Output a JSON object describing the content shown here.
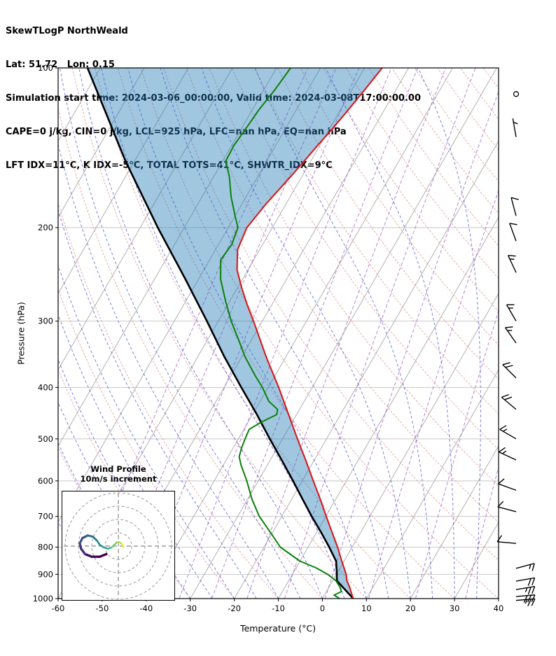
{
  "header": {
    "line1": "SkewTLogP NorthWeald",
    "line2": "Lat: 51.72   Lon: 0.15",
    "line3": "Simulation start time: 2024-03-06_00:00:00, Valid time: 2024-03-08T17:00:00.00",
    "line4": "CAPE=0 j/kg, CIN=0 j/kg, LCL=925 hPa, LFC=nan hPa, EQ=nan hPa",
    "line5": "LFT IDX=11°C, K IDX=-5°C, TOTAL TOTS=41°C, SHWTR_IDX=9°C"
  },
  "axes": {
    "xlabel": "Temperature (°C)",
    "ylabel": "Pressure (hPa)"
  },
  "inset": {
    "title_line1": "Wind Profile",
    "title_line2": "10m/s increment",
    "ring_step_ms": 10
  },
  "chart_data": {
    "type": "line",
    "subtype": "skewt-logp",
    "title": "SkewTLogP NorthWeald",
    "xlabel": "Temperature (°C)",
    "ylabel": "Pressure (hPa)",
    "xlim": [
      -60,
      40
    ],
    "p_top": 100,
    "p_bottom": 1000,
    "skew_deg": 30,
    "x_ticks": [
      -60,
      -50,
      -40,
      -30,
      -20,
      -10,
      0,
      10,
      20,
      30,
      40
    ],
    "pressure_ticks": [
      100,
      200,
      300,
      400,
      500,
      600,
      700,
      800,
      900,
      1000
    ],
    "series": [
      {
        "name": "parcel",
        "color": "#000000",
        "width": 2.6,
        "points": [
          [
            1000,
            7.0
          ],
          [
            925,
            0.9
          ],
          [
            900,
            0.1
          ],
          [
            850,
            -1.8
          ],
          [
            800,
            -5.2
          ],
          [
            750,
            -9.0
          ],
          [
            700,
            -13.2
          ],
          [
            650,
            -17.5
          ],
          [
            600,
            -22.1
          ],
          [
            550,
            -27.2
          ],
          [
            500,
            -32.9
          ],
          [
            450,
            -39.0
          ],
          [
            400,
            -46.1
          ],
          [
            350,
            -54.0
          ],
          [
            300,
            -62.6
          ],
          [
            250,
            -73.0
          ],
          [
            200,
            -86.0
          ],
          [
            150,
            -102.0
          ],
          [
            100,
            -122.9
          ]
        ]
      },
      {
        "name": "temperature",
        "color": "#dd1111",
        "width": 2,
        "points": [
          [
            1000,
            7.0
          ],
          [
            975,
            5.8
          ],
          [
            950,
            4.6
          ],
          [
            925,
            3.2
          ],
          [
            900,
            2.2
          ],
          [
            850,
            -0.5
          ],
          [
            800,
            -3.3
          ],
          [
            750,
            -6.5
          ],
          [
            700,
            -9.9
          ],
          [
            650,
            -13.5
          ],
          [
            600,
            -17.5
          ],
          [
            550,
            -21.8
          ],
          [
            500,
            -26.6
          ],
          [
            450,
            -31.8
          ],
          [
            400,
            -37.6
          ],
          [
            350,
            -44.5
          ],
          [
            300,
            -52.0
          ],
          [
            280,
            -55.5
          ],
          [
            260,
            -59.0
          ],
          [
            240,
            -62.5
          ],
          [
            220,
            -65.0
          ],
          [
            200,
            -65.8
          ],
          [
            180,
            -64.5
          ],
          [
            160,
            -62.5
          ],
          [
            150,
            -61.5
          ],
          [
            140,
            -60.5
          ],
          [
            130,
            -59.3
          ],
          [
            120,
            -58.2
          ],
          [
            110,
            -57.1
          ],
          [
            100,
            -56.0
          ]
        ]
      },
      {
        "name": "dewpoint",
        "color": "#0b810b",
        "width": 2,
        "points": [
          [
            1000,
            3.9
          ],
          [
            985,
            2.2
          ],
          [
            970,
            3.4
          ],
          [
            950,
            2.4
          ],
          [
            925,
            0.7
          ],
          [
            900,
            -2.0
          ],
          [
            875,
            -5.5
          ],
          [
            850,
            -10.0
          ],
          [
            800,
            -16.3
          ],
          [
            750,
            -20.5
          ],
          [
            700,
            -25.1
          ],
          [
            650,
            -29.0
          ],
          [
            600,
            -32.6
          ],
          [
            560,
            -36.0
          ],
          [
            540,
            -37.5
          ],
          [
            520,
            -38.1
          ],
          [
            500,
            -38.5
          ],
          [
            480,
            -38.8
          ],
          [
            465,
            -37.0
          ],
          [
            450,
            -34.5
          ],
          [
            440,
            -35.0
          ],
          [
            425,
            -38.0
          ],
          [
            400,
            -41.3
          ],
          [
            380,
            -44.5
          ],
          [
            350,
            -49.3
          ],
          [
            325,
            -53.0
          ],
          [
            300,
            -57.1
          ],
          [
            275,
            -61.0
          ],
          [
            250,
            -65.0
          ],
          [
            230,
            -67.5
          ],
          [
            215,
            -67.0
          ],
          [
            200,
            -67.8
          ],
          [
            190,
            -70.0
          ],
          [
            175,
            -73.4
          ],
          [
            160,
            -76.5
          ],
          [
            150,
            -79.3
          ],
          [
            140,
            -79.5
          ],
          [
            130,
            -79.0
          ],
          [
            120,
            -78.5
          ],
          [
            110,
            -77.5
          ],
          [
            100,
            -76.8
          ]
        ]
      }
    ],
    "shade": {
      "between": [
        "parcel",
        "temperature"
      ],
      "color": "#1f77b4",
      "opacity": 0.42
    },
    "background": {
      "isotherm_color": "#b0b0b0",
      "isotherm_range": [
        -150,
        40,
        10
      ],
      "pressure_grid_color": "#c8c8c8",
      "dry_adiabats": {
        "color": "#dd8888",
        "theta_range": [
          -40,
          200,
          10
        ]
      },
      "moist_adiabats": {
        "color": "#4c4cd2",
        "starts": [
          -60,
          -50,
          -40,
          -35,
          -30,
          -25,
          -20,
          -15,
          -10,
          -5,
          0,
          5,
          10,
          15,
          20,
          25,
          30,
          35,
          40
        ]
      },
      "mixing_lines": {
        "color": "#a565c8",
        "ratios_g_kg": [
          0.02,
          0.05,
          0.1,
          0.25,
          0.5,
          1,
          2,
          4,
          8,
          16,
          32
        ]
      }
    },
    "wind_barbs": [
      {
        "p": 112,
        "spd": 0,
        "dir": 0
      },
      {
        "p": 135,
        "spd": 5,
        "dir": 350
      },
      {
        "p": 190,
        "spd": 10,
        "dir": 345
      },
      {
        "p": 212,
        "spd": 10,
        "dir": 340
      },
      {
        "p": 243,
        "spd": 15,
        "dir": 335
      },
      {
        "p": 300,
        "spd": 15,
        "dir": 330
      },
      {
        "p": 330,
        "spd": 15,
        "dir": 325
      },
      {
        "p": 384,
        "spd": 20,
        "dir": 315
      },
      {
        "p": 440,
        "spd": 20,
        "dir": 310
      },
      {
        "p": 500,
        "spd": 15,
        "dir": 300
      },
      {
        "p": 548,
        "spd": 15,
        "dir": 295
      },
      {
        "p": 625,
        "spd": 10,
        "dir": 290
      },
      {
        "p": 686,
        "spd": 10,
        "dir": 285
      },
      {
        "p": 787,
        "spd": 10,
        "dir": 275
      },
      {
        "p": 877,
        "spd": 15,
        "dir": 75
      },
      {
        "p": 927,
        "spd": 20,
        "dir": 80
      },
      {
        "p": 962,
        "spd": 25,
        "dir": 80
      },
      {
        "p": 991,
        "spd": 30,
        "dir": 85
      },
      {
        "p": 1008,
        "spd": 25,
        "dir": 85
      }
    ],
    "hodograph": {
      "rings_ms": [
        10,
        20,
        30,
        40
      ],
      "points": [
        {
          "u": -9,
          "v": -6,
          "c": "#440154",
          "w": 3.4
        },
        {
          "u": -14,
          "v": -8,
          "c": "#440154",
          "w": 3.4
        },
        {
          "u": -20,
          "v": -8,
          "c": "#450a5c",
          "w": 3.4
        },
        {
          "u": -25,
          "v": -6,
          "c": "#46327e",
          "w": 3.4
        },
        {
          "u": -28,
          "v": -2,
          "c": "#46327e",
          "w": 3.4
        },
        {
          "u": -29,
          "v": 2,
          "c": "#3b528b",
          "w": 3.2
        },
        {
          "u": -27,
          "v": 6,
          "c": "#3b528b",
          "w": 3.2
        },
        {
          "u": -23,
          "v": 8,
          "c": "#2c728e",
          "w": 3.0
        },
        {
          "u": -19,
          "v": 7,
          "c": "#2c728e",
          "w": 2.8
        },
        {
          "u": -16,
          "v": 4,
          "c": "#21918c",
          "w": 2.6
        },
        {
          "u": -14,
          "v": 1,
          "c": "#21918c",
          "w": 2.4
        },
        {
          "u": -11,
          "v": -1,
          "c": "#27ad81",
          "w": 2.4
        },
        {
          "u": -8,
          "v": -2,
          "c": "#27ad81",
          "w": 2.2
        },
        {
          "u": -5,
          "v": -1,
          "c": "#5ec962",
          "w": 2.2
        },
        {
          "u": -3,
          "v": 1,
          "c": "#5ec962",
          "w": 2.0
        },
        {
          "u": -1,
          "v": 3,
          "c": "#aadc32",
          "w": 2.0
        },
        {
          "u": 1,
          "v": 3,
          "c": "#aadc32",
          "w": 2.0
        },
        {
          "u": 3,
          "v": 1,
          "c": "#fde725",
          "w": 2.0
        },
        {
          "u": 4,
          "v": -1,
          "c": "#fde725",
          "w": 2.0
        }
      ]
    }
  }
}
